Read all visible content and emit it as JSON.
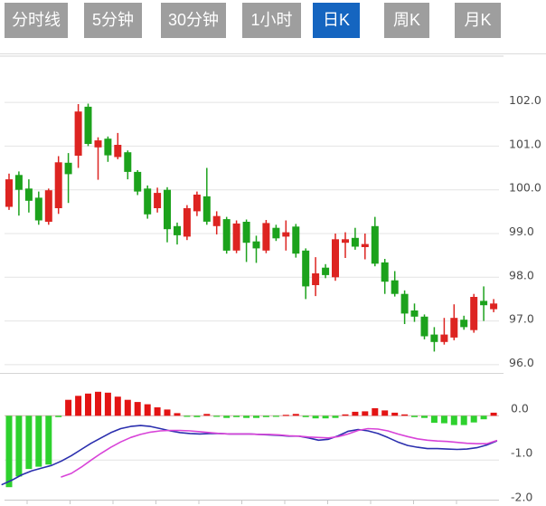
{
  "tab_bar": {
    "tabs": [
      {
        "label": "分时线",
        "active": false
      },
      {
        "label": "5分钟",
        "active": false
      },
      {
        "label": "30分钟",
        "active": false
      },
      {
        "label": "1小时",
        "active": false
      },
      {
        "label": "日K",
        "active": true
      },
      {
        "label": "周K",
        "active": false
      },
      {
        "label": "月K",
        "active": false
      }
    ]
  },
  "colors": {
    "up": "#dd2421",
    "down": "#1ca21c",
    "hist_up": "#e31414",
    "hist_down": "#2ed12e",
    "dea_line": "#2b2fae",
    "dif_line": "#d843d8",
    "tab_active_bg": "#1565c0",
    "tab_inactive_bg": "#9e9e9e",
    "tab_text": "#ffffff",
    "grid": "#e4e4e4",
    "zero_line": "#d8b4b4",
    "axis_line": "#c8c8c8",
    "axis_text": "#4a4a4a",
    "divider": "#d5d5d5",
    "background": "#ffffff"
  },
  "chart_data": [
    {
      "type": "candlestick",
      "panel": "price",
      "grid": true,
      "legend_position": "none",
      "ylim": [
        95.8,
        103.0
      ],
      "y_ticks": [
        102.0,
        101.0,
        100.0,
        99.0,
        98.0,
        97.0,
        96.0
      ],
      "y_tick_labels": [
        "102.0",
        "101.0",
        "100.0",
        "99.0",
        "98.0",
        "97.0",
        "96.0"
      ],
      "candles_ohlc": [
        [
          99.61,
          100.37,
          99.54,
          100.24
        ],
        [
          100.34,
          100.42,
          99.41,
          100.0
        ],
        [
          100.03,
          100.24,
          99.48,
          99.75
        ],
        [
          99.82,
          99.96,
          99.2,
          99.3
        ],
        [
          99.27,
          100.03,
          99.2,
          99.99
        ],
        [
          99.58,
          100.77,
          99.45,
          100.63
        ],
        [
          100.62,
          100.84,
          99.7,
          100.36
        ],
        [
          100.78,
          101.96,
          100.5,
          101.79
        ],
        [
          101.9,
          101.97,
          101.0,
          101.05
        ],
        [
          100.97,
          101.2,
          100.23,
          101.13
        ],
        [
          101.17,
          101.22,
          100.64,
          100.79
        ],
        [
          100.75,
          101.3,
          100.7,
          101.03
        ],
        [
          100.86,
          100.9,
          100.24,
          100.41
        ],
        [
          100.41,
          100.45,
          99.88,
          99.96
        ],
        [
          100.03,
          100.1,
          99.34,
          99.44
        ],
        [
          99.58,
          100.05,
          99.48,
          99.93
        ],
        [
          100.0,
          100.06,
          98.8,
          99.1
        ],
        [
          99.17,
          99.25,
          98.75,
          98.96
        ],
        [
          98.93,
          99.65,
          98.85,
          99.58
        ],
        [
          99.51,
          99.96,
          99.4,
          99.89
        ],
        [
          99.85,
          100.5,
          99.2,
          99.27
        ],
        [
          99.17,
          99.51,
          98.98,
          99.4
        ],
        [
          99.33,
          99.38,
          98.54,
          98.61
        ],
        [
          98.61,
          99.3,
          98.55,
          99.23
        ],
        [
          99.27,
          99.32,
          98.35,
          98.79
        ],
        [
          98.82,
          98.95,
          98.33,
          98.66
        ],
        [
          98.61,
          99.31,
          98.55,
          99.24
        ],
        [
          99.13,
          99.2,
          98.83,
          98.89
        ],
        [
          98.93,
          99.3,
          98.61,
          99.03
        ],
        [
          99.16,
          99.22,
          98.45,
          98.54
        ],
        [
          98.61,
          98.66,
          97.5,
          97.79
        ],
        [
          97.82,
          98.46,
          97.57,
          98.09
        ],
        [
          98.22,
          98.3,
          97.98,
          98.05
        ],
        [
          98.0,
          99.0,
          97.92,
          98.87
        ],
        [
          98.79,
          99.03,
          98.44,
          98.87
        ],
        [
          98.9,
          99.13,
          98.63,
          98.7
        ],
        [
          98.69,
          99.0,
          98.41,
          98.76
        ],
        [
          99.17,
          99.38,
          98.25,
          98.31
        ],
        [
          98.34,
          98.42,
          97.62,
          97.9
        ],
        [
          97.93,
          98.14,
          97.56,
          97.62
        ],
        [
          97.62,
          97.7,
          96.93,
          97.17
        ],
        [
          97.24,
          97.4,
          96.98,
          97.1
        ],
        [
          97.1,
          97.15,
          96.58,
          96.65
        ],
        [
          96.69,
          96.86,
          96.3,
          96.52
        ],
        [
          96.52,
          97.07,
          96.46,
          96.69
        ],
        [
          96.62,
          97.38,
          96.56,
          97.07
        ],
        [
          97.03,
          97.12,
          96.8,
          96.86
        ],
        [
          96.79,
          97.62,
          96.73,
          97.55
        ],
        [
          97.46,
          97.79,
          97.0,
          97.36
        ],
        [
          97.27,
          97.5,
          97.2,
          97.4
        ]
      ]
    },
    {
      "type": "macd",
      "panel": "indicator",
      "ylim": [
        -2.0,
        0.6
      ],
      "y_ticks": [
        0,
        -1,
        -2
      ],
      "y_tick_labels": [
        "0.0",
        "-1.0",
        "-2.0"
      ],
      "histogram": [
        -1.61,
        -1.37,
        -1.2,
        -1.15,
        -1.1,
        -0.03,
        0.36,
        0.45,
        0.5,
        0.54,
        0.52,
        0.43,
        0.36,
        0.31,
        0.26,
        0.19,
        0.14,
        0.06,
        -0.02,
        -0.03,
        0.04,
        -0.02,
        -0.05,
        -0.03,
        -0.05,
        -0.05,
        -0.03,
        -0.02,
        0.02,
        0.04,
        -0.03,
        -0.06,
        -0.06,
        -0.05,
        0.03,
        0.09,
        0.1,
        0.17,
        0.12,
        0.07,
        0.03,
        -0.03,
        -0.05,
        -0.16,
        -0.17,
        -0.21,
        -0.21,
        -0.15,
        -0.08,
        0.07
      ],
      "series": [
        {
          "name": "DEA",
          "color": "#2b2fae",
          "start_index": -0.7,
          "values": [
            -1.55,
            -1.45,
            -1.33,
            -1.24,
            -1.18,
            -1.12,
            -1.02,
            -0.9,
            -0.76,
            -0.62,
            -0.5,
            -0.38,
            -0.29,
            -0.24,
            -0.22,
            -0.24,
            -0.29,
            -0.34,
            -0.38,
            -0.4,
            -0.41,
            -0.4,
            -0.4,
            -0.41,
            -0.41,
            -0.41,
            -0.42,
            -0.43,
            -0.44,
            -0.46,
            -0.46,
            -0.5,
            -0.55,
            -0.53,
            -0.45,
            -0.35,
            -0.31,
            -0.34,
            -0.4,
            -0.49,
            -0.59,
            -0.67,
            -0.71,
            -0.74,
            -0.74,
            -0.75,
            -0.76,
            -0.75,
            -0.72,
            -0.66,
            -0.57
          ]
        },
        {
          "name": "DIF",
          "color": "#d843d8",
          "start_index": 5.3,
          "values": [
            -1.38,
            -1.3,
            -1.16,
            -1.0,
            -0.85,
            -0.71,
            -0.59,
            -0.49,
            -0.42,
            -0.37,
            -0.34,
            -0.33,
            -0.33,
            -0.34,
            -0.36,
            -0.38,
            -0.4,
            -0.41,
            -0.41,
            -0.41,
            -0.42,
            -0.42,
            -0.43,
            -0.45,
            -0.46,
            -0.48,
            -0.49,
            -0.5,
            -0.47,
            -0.41,
            -0.33,
            -0.29,
            -0.3,
            -0.34,
            -0.41,
            -0.47,
            -0.52,
            -0.55,
            -0.57,
            -0.58,
            -0.6,
            -0.62,
            -0.63,
            -0.63,
            -0.56
          ]
        }
      ]
    }
  ]
}
